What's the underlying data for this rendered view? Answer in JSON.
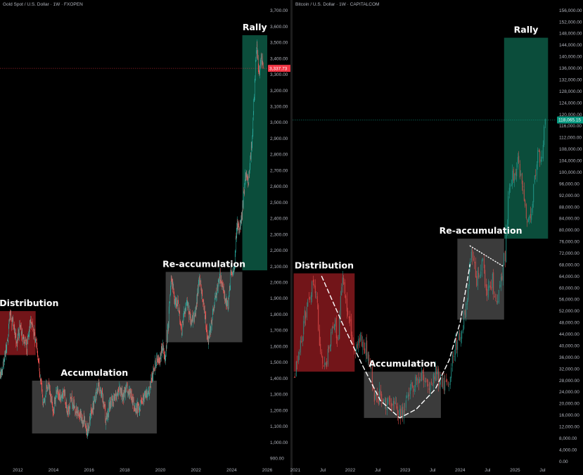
{
  "chart_data": [
    {
      "type": "candlestick",
      "id": "gold",
      "title": "Gold Spot / U.S. Dollar · 1W · FXOPEN",
      "x_ticks": [
        "2012",
        "2014",
        "2016",
        "2018",
        "2020",
        "2022",
        "2024",
        "2026"
      ],
      "y_ticks": [
        "900.00",
        "1,000.00",
        "1,100.00",
        "1,200.00",
        "1,300.00",
        "1,400.00",
        "1,500.00",
        "1,600.00",
        "1,700.00",
        "1,800.00",
        "1,900.00",
        "2,000.00",
        "2,100.00",
        "2,200.00",
        "2,300.00",
        "2,400.00",
        "2,500.00",
        "2,600.00",
        "2,700.00",
        "2,800.00",
        "2,900.00",
        "3,000.00",
        "3,100.00",
        "3,200.00",
        "3,300.00",
        "3,400.00",
        "3,500.00",
        "3,600.00",
        "3,700.00"
      ],
      "ylim": [
        870,
        3730
      ],
      "xlim": [
        2011.0,
        2026.0
      ],
      "current_price_label": "3,337.73",
      "current_price": 3337.73,
      "zones": [
        {
          "label": "Distribution",
          "color": "#8b1a1f",
          "x_start": 2011.0,
          "x_end": 2013.0,
          "y_low": 1545,
          "y_high": 1820
        },
        {
          "label": "Accumulation",
          "color": "#4a4a4a",
          "x_start": 2012.8,
          "x_end": 2019.8,
          "y_low": 1055,
          "y_high": 1385
        },
        {
          "label": "Re-accumulation",
          "color": "#4a4a4a",
          "x_start": 2020.3,
          "x_end": 2024.6,
          "y_low": 1625,
          "y_high": 2065
        },
        {
          "label": "Rally",
          "color": "#0e5e48",
          "x_start": 2024.6,
          "x_end": 2026.0,
          "y_low": 2075,
          "y_high": 3545
        }
      ],
      "price_path": [
        [
          2011.0,
          1420
        ],
        [
          2011.2,
          1500
        ],
        [
          2011.45,
          1640
        ],
        [
          2011.55,
          1800
        ],
        [
          2011.65,
          1760
        ],
        [
          2011.8,
          1720
        ],
        [
          2011.95,
          1600
        ],
        [
          2012.1,
          1720
        ],
        [
          2012.3,
          1640
        ],
        [
          2012.5,
          1590
        ],
        [
          2012.7,
          1760
        ],
        [
          2012.9,
          1680
        ],
        [
          2013.05,
          1600
        ],
        [
          2013.25,
          1420
        ],
        [
          2013.45,
          1230
        ],
        [
          2013.6,
          1350
        ],
        [
          2013.8,
          1320
        ],
        [
          2014.0,
          1200
        ],
        [
          2014.2,
          1330
        ],
        [
          2014.45,
          1280
        ],
        [
          2014.6,
          1320
        ],
        [
          2014.8,
          1180
        ],
        [
          2015.0,
          1270
        ],
        [
          2015.25,
          1200
        ],
        [
          2015.5,
          1180
        ],
        [
          2015.7,
          1130
        ],
        [
          2015.9,
          1060
        ],
        [
          2016.1,
          1180
        ],
        [
          2016.3,
          1260
        ],
        [
          2016.55,
          1360
        ],
        [
          2016.8,
          1260
        ],
        [
          2016.95,
          1130
        ],
        [
          2017.2,
          1250
        ],
        [
          2017.45,
          1270
        ],
        [
          2017.7,
          1330
        ],
        [
          2017.95,
          1290
        ],
        [
          2018.1,
          1350
        ],
        [
          2018.35,
          1300
        ],
        [
          2018.6,
          1200
        ],
        [
          2018.85,
          1230
        ],
        [
          2019.1,
          1300
        ],
        [
          2019.3,
          1280
        ],
        [
          2019.55,
          1420
        ],
        [
          2019.75,
          1500
        ],
        [
          2019.95,
          1520
        ],
        [
          2020.15,
          1590
        ],
        [
          2020.25,
          1520
        ],
        [
          2020.45,
          1740
        ],
        [
          2020.6,
          2040
        ],
        [
          2020.8,
          1880
        ],
        [
          2021.0,
          1870
        ],
        [
          2021.2,
          1700
        ],
        [
          2021.45,
          1880
        ],
        [
          2021.7,
          1760
        ],
        [
          2021.95,
          1800
        ],
        [
          2022.2,
          2040
        ],
        [
          2022.45,
          1840
        ],
        [
          2022.7,
          1630
        ],
        [
          2022.85,
          1730
        ],
        [
          2023.1,
          1920
        ],
        [
          2023.35,
          2040
        ],
        [
          2023.6,
          1920
        ],
        [
          2023.8,
          1830
        ],
        [
          2023.95,
          2060
        ],
        [
          2024.15,
          2080
        ],
        [
          2024.3,
          2380
        ],
        [
          2024.45,
          2320
        ],
        [
          2024.6,
          2450
        ],
        [
          2024.8,
          2700
        ],
        [
          2024.95,
          2620
        ],
        [
          2025.15,
          2900
        ],
        [
          2025.3,
          3250
        ],
        [
          2025.4,
          3480
        ],
        [
          2025.55,
          3320
        ],
        [
          2025.7,
          3400
        ],
        [
          2025.78,
          3337
        ]
      ],
      "overlay_lines": []
    },
    {
      "type": "candlestick",
      "id": "btc",
      "title": "Bitcoin / U.S. Dollar · 1W · CAPITALCOM",
      "x_ticks": [
        "2021",
        "Jul",
        "2022",
        "Jul",
        "2023",
        "Jul",
        "2024",
        "Jul",
        "2025",
        "Jul"
      ],
      "x_tick_values": [
        2021.0,
        2021.5,
        2022.0,
        2022.5,
        2023.0,
        2023.5,
        2024.0,
        2024.5,
        2025.0,
        2025.5
      ],
      "y_ticks": [
        "0.00",
        "4,000.00",
        "8,000.00",
        "12,000.00",
        "16,000.00",
        "20,000.00",
        "24,000.00",
        "28,000.00",
        "32,000.00",
        "36,000.00",
        "40,000.00",
        "44,000.00",
        "48,000.00",
        "52,000.00",
        "56,000.00",
        "60,000.00",
        "64,000.00",
        "68,000.00",
        "72,000.00",
        "76,000.00",
        "80,000.00",
        "84,000.00",
        "88,000.00",
        "92,000.00",
        "96,000.00",
        "100,000.00",
        "104,000.00",
        "108,000.00",
        "112,000.00",
        "116,000.00",
        "120,000.00",
        "124,000.00",
        "128,000.00",
        "132,000.00",
        "136,000.00",
        "140,000.00",
        "144,000.00",
        "148,000.00",
        "152,000.00",
        "156,000.00"
      ],
      "ylim": [
        -600,
        157600
      ],
      "xlim": [
        2020.95,
        2025.75
      ],
      "current_price_label": "118,065.15",
      "current_price": 118065.15,
      "zones": [
        {
          "label": "Distribution",
          "color": "#8b1a1f",
          "x_start": 2020.97,
          "x_end": 2022.08,
          "y_low": 31000,
          "y_high": 65000
        },
        {
          "label": "Accumulation",
          "color": "#4a4a4a",
          "x_start": 2022.25,
          "x_end": 2023.65,
          "y_low": 15000,
          "y_high": 31000
        },
        {
          "label": "Re-accumulation",
          "color": "#4a4a4a",
          "x_start": 2023.95,
          "x_end": 2024.8,
          "y_low": 49000,
          "y_high": 77000
        },
        {
          "label": "Rally",
          "color": "#0e5e48",
          "x_start": 2024.8,
          "x_end": 2025.6,
          "y_low": 77000,
          "y_high": 146500
        }
      ],
      "price_path": [
        [
          2020.96,
          29000
        ],
        [
          2021.05,
          35000
        ],
        [
          2021.15,
          48000
        ],
        [
          2021.25,
          58000
        ],
        [
          2021.33,
          63000
        ],
        [
          2021.4,
          56000
        ],
        [
          2021.45,
          37000
        ],
        [
          2021.55,
          32000
        ],
        [
          2021.62,
          40000
        ],
        [
          2021.7,
          48000
        ],
        [
          2021.78,
          43000
        ],
        [
          2021.86,
          64000
        ],
        [
          2021.92,
          57000
        ],
        [
          2022.0,
          47000
        ],
        [
          2022.08,
          38000
        ],
        [
          2022.18,
          44000
        ],
        [
          2022.28,
          39000
        ],
        [
          2022.38,
          30000
        ],
        [
          2022.45,
          21000
        ],
        [
          2022.58,
          23000
        ],
        [
          2022.68,
          20000
        ],
        [
          2022.8,
          19500
        ],
        [
          2022.87,
          16500
        ],
        [
          2022.97,
          16800
        ],
        [
          2023.05,
          23000
        ],
        [
          2023.2,
          28000
        ],
        [
          2023.3,
          29500
        ],
        [
          2023.45,
          26500
        ],
        [
          2023.55,
          30500
        ],
        [
          2023.68,
          26000
        ],
        [
          2023.8,
          28500
        ],
        [
          2023.88,
          37000
        ],
        [
          2023.98,
          43000
        ],
        [
          2024.1,
          52000
        ],
        [
          2024.2,
          71000
        ],
        [
          2024.3,
          63000
        ],
        [
          2024.4,
          69000
        ],
        [
          2024.5,
          57000
        ],
        [
          2024.58,
          63000
        ],
        [
          2024.66,
          55000
        ],
        [
          2024.74,
          62000
        ],
        [
          2024.82,
          72000
        ],
        [
          2024.88,
          91000
        ],
        [
          2024.95,
          98000
        ],
        [
          2025.05,
          104000
        ],
        [
          2025.12,
          96000
        ],
        [
          2025.22,
          82000
        ],
        [
          2025.28,
          85000
        ],
        [
          2025.35,
          96000
        ],
        [
          2025.42,
          107000
        ],
        [
          2025.48,
          104000
        ],
        [
          2025.55,
          118000
        ]
      ],
      "overlay_lines": [
        {
          "style": "dashed-curve",
          "points": [
            [
              2021.48,
              64000
            ],
            [
              2021.85,
              48000
            ],
            [
              2022.2,
              34000
            ],
            [
              2022.55,
              21000
            ],
            [
              2022.9,
              15000
            ],
            [
              2023.2,
              18000
            ],
            [
              2023.55,
              25000
            ],
            [
              2023.8,
              35000
            ],
            [
              2024.0,
              48000
            ],
            [
              2024.18,
              68000
            ]
          ]
        },
        {
          "style": "dotted-line",
          "points": [
            [
              2024.18,
              74500
            ],
            [
              2024.78,
              67500
            ]
          ]
        }
      ]
    }
  ]
}
